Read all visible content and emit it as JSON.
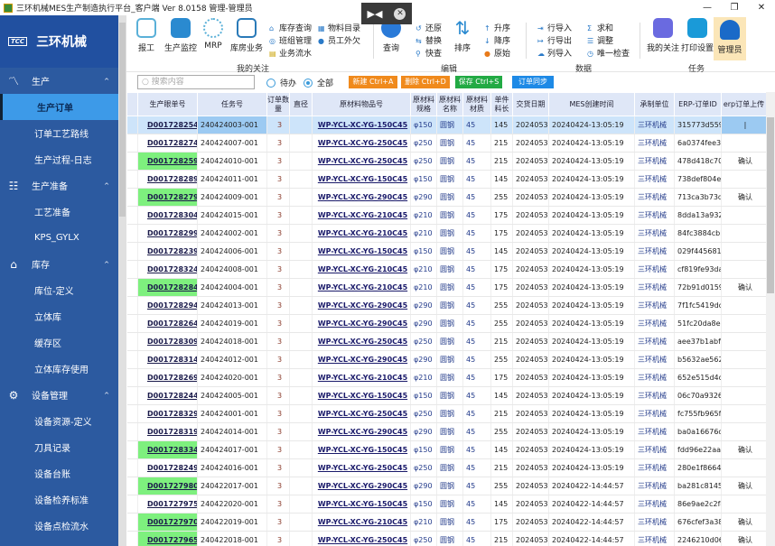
{
  "window": {
    "title": "三环机械MES生产制造执行平台_客户端  Ver 8.0158  管理-管理员",
    "minimize": "—",
    "maximize": "❐",
    "close": "✕"
  },
  "overlay": {
    "icon": "share-arrow-icon",
    "close": "close-icon"
  },
  "sidebar": {
    "logo_mark": "TCC",
    "logo_text": "三环机械",
    "groups": [
      {
        "label": "生产",
        "icon": "chart-line-icon",
        "items": [
          "生产订单",
          "订单工艺路线",
          "生产过程-日志"
        ]
      },
      {
        "label": "生产准备",
        "icon": "checklist-icon",
        "items": [
          "工艺准备",
          "KPS_GYLX"
        ]
      },
      {
        "label": "库存",
        "icon": "home-icon",
        "items": [
          "库位-定义",
          "立体库",
          "缓存区",
          "立体库存使用"
        ]
      },
      {
        "label": "设备管理",
        "icon": "gear-icon",
        "items": [
          "设备资源-定义",
          "刀具记录",
          "设备台账",
          "设备检养标准",
          "设备点检流水"
        ]
      }
    ],
    "active": "生产订单"
  },
  "ribbon": {
    "focus": {
      "label": "我的关注",
      "big": [
        "报工",
        "生产监控",
        "MRP",
        "库房业务"
      ],
      "small": [
        "库存查询",
        "班组管理",
        "业务流水",
        "物料目录",
        "员工外欠"
      ]
    },
    "edit": {
      "label": "编辑",
      "query": "查询",
      "small1": [
        "还原",
        "替换",
        "快查"
      ],
      "sort": "排序",
      "small2": [
        "升序",
        "降序",
        "原始"
      ]
    },
    "data": {
      "label": "数据",
      "small1": [
        "行导入",
        "行导出",
        "列导入"
      ],
      "small2": [
        "求和",
        "调整",
        "唯一检查"
      ]
    },
    "task": {
      "label": "任务",
      "big": [
        "我的关注",
        "打印设置",
        "管理员"
      ]
    }
  },
  "toolbar": {
    "search_placeholder": "搜索内容",
    "radio_pending": "待办",
    "radio_all": "全部",
    "radio_selected": "全部",
    "new": "新建 Ctrl+A",
    "delete": "删除 Ctrl+D",
    "save": "保存 Ctrl+S",
    "sync": "订单同步",
    "colors": {
      "new": "#f08a1c",
      "delete": "#f08a1c",
      "save": "#22aa44",
      "sync": "#1e8ae6"
    }
  },
  "table": {
    "headers": [
      "生产眼单号",
      "任务号",
      "订单数量",
      "直径",
      "原材料物品号",
      "原材料规格",
      "原材料名称",
      "原材料材质",
      "单件料长",
      "交货日期",
      "MES创建时间",
      "承制单位",
      "ERP-订单ID",
      "erp订单上传"
    ],
    "rows": [
      [
        "D001728254",
        "240424003-001",
        "3",
        "",
        "WP-YCL-XC-YG-150C45",
        "φ150",
        "圆钢",
        "45",
        "145",
        "20240531",
        "20240424-13:05:19",
        "三环机械",
        "315773d559",
        "|",
        false
      ],
      [
        "D001728274",
        "240424007-001",
        "3",
        "",
        "WP-YCL-XC-YG-250C45",
        "φ250",
        "圆钢",
        "45",
        "215",
        "20240531",
        "20240424-13:05:19",
        "三环机械",
        "6a0374fee3c",
        "",
        false
      ],
      [
        "D001728259",
        "240424010-001",
        "3",
        "",
        "WP-YCL-XC-YG-250C45",
        "φ250",
        "圆钢",
        "45",
        "215",
        "20240531",
        "20240424-13:05:19",
        "三环机械",
        "478d418c70",
        "确认",
        true
      ],
      [
        "D001728289",
        "240424011-001",
        "3",
        "",
        "WP-YCL-XC-YG-150C45",
        "φ150",
        "圆钢",
        "45",
        "145",
        "20240531",
        "20240424-13:05:19",
        "三环机械",
        "738def804e",
        "",
        false
      ],
      [
        "D001728279",
        "240424009-001",
        "3",
        "",
        "WP-YCL-XC-YG-290C45",
        "φ290",
        "圆钢",
        "45",
        "255",
        "20240531",
        "20240424-13:05:19",
        "三环机械",
        "713ca3b73d",
        "确认",
        true
      ],
      [
        "D001728304",
        "240424015-001",
        "3",
        "",
        "WP-YCL-XC-YG-210C45",
        "φ210",
        "圆钢",
        "45",
        "175",
        "20240531",
        "20240424-13:05:19",
        "三环机械",
        "8dda13a932",
        "",
        false
      ],
      [
        "D001728299",
        "240424002-001",
        "3",
        "",
        "WP-YCL-XC-YG-210C45",
        "φ210",
        "圆钢",
        "45",
        "175",
        "20240531",
        "20240424-13:05:19",
        "三环机械",
        "84fc3884cbb",
        "",
        false
      ],
      [
        "D001728239",
        "240424006-001",
        "3",
        "",
        "WP-YCL-XC-YG-150C45",
        "φ150",
        "圆钢",
        "45",
        "145",
        "20240531",
        "20240424-13:05:19",
        "三环机械",
        "029f4456816",
        "",
        false
      ],
      [
        "D001728324",
        "240424008-001",
        "3",
        "",
        "WP-YCL-XC-YG-210C45",
        "φ210",
        "圆钢",
        "45",
        "175",
        "20240531",
        "20240424-13:05:19",
        "三环机械",
        "cf819fe93da",
        "",
        false
      ],
      [
        "D001728284",
        "240424004-001",
        "3",
        "",
        "WP-YCL-XC-YG-210C45",
        "φ210",
        "圆钢",
        "45",
        "175",
        "20240531",
        "20240424-13:05:19",
        "三环机械",
        "72b91d0159",
        "确认",
        true
      ],
      [
        "D001728294",
        "240424013-001",
        "3",
        "",
        "WP-YCL-XC-YG-290C45",
        "φ290",
        "圆钢",
        "45",
        "255",
        "20240531",
        "20240424-13:05:19",
        "三环机械",
        "7f1fc5419dc",
        "",
        false
      ],
      [
        "D001728264",
        "240424019-001",
        "3",
        "",
        "WP-YCL-XC-YG-290C45",
        "φ290",
        "圆钢",
        "45",
        "255",
        "20240531",
        "20240424-13:05:19",
        "三环机械",
        "51fc20da8e2",
        "",
        false
      ],
      [
        "D001728309",
        "240424018-001",
        "3",
        "",
        "WP-YCL-XC-YG-250C45",
        "φ250",
        "圆钢",
        "45",
        "215",
        "20240531",
        "20240424-13:05:19",
        "三环机械",
        "aee37b1abf",
        "",
        false
      ],
      [
        "D001728314",
        "240424012-001",
        "3",
        "",
        "WP-YCL-XC-YG-290C45",
        "φ290",
        "圆钢",
        "45",
        "255",
        "20240531",
        "20240424-13:05:19",
        "三环机械",
        "b5632ae562",
        "",
        false
      ],
      [
        "D001728269",
        "240424020-001",
        "3",
        "",
        "WP-YCL-XC-YG-210C45",
        "φ210",
        "圆钢",
        "45",
        "175",
        "20240531",
        "20240424-13:05:19",
        "三环机械",
        "652e515d4d",
        "",
        false
      ],
      [
        "D001728244",
        "240424005-001",
        "3",
        "",
        "WP-YCL-XC-YG-150C45",
        "φ150",
        "圆钢",
        "45",
        "145",
        "20240531",
        "20240424-13:05:19",
        "三环机械",
        "06c70a9326",
        "",
        false
      ],
      [
        "D001728329",
        "240424001-001",
        "3",
        "",
        "WP-YCL-XC-YG-250C45",
        "φ250",
        "圆钢",
        "45",
        "215",
        "20240531",
        "20240424-13:05:19",
        "三环机械",
        "fc755fb965f",
        "",
        false
      ],
      [
        "D001728319",
        "240424014-001",
        "3",
        "",
        "WP-YCL-XC-YG-290C45",
        "φ290",
        "圆钢",
        "45",
        "255",
        "20240531",
        "20240424-13:05:19",
        "三环机械",
        "ba0a16676d",
        "",
        false
      ],
      [
        "D001728334",
        "240424017-001",
        "3",
        "",
        "WP-YCL-XC-YG-150C45",
        "φ150",
        "圆钢",
        "45",
        "145",
        "20240531",
        "20240424-13:05:19",
        "三环机械",
        "fdd96e22aa",
        "确认",
        true
      ],
      [
        "D001728249",
        "240424016-001",
        "3",
        "",
        "WP-YCL-XC-YG-250C45",
        "φ250",
        "圆钢",
        "45",
        "215",
        "20240531",
        "20240424-13:05:19",
        "三环机械",
        "280e1f86642",
        "",
        false
      ],
      [
        "D001727980",
        "240422017-001",
        "3",
        "",
        "WP-YCL-XC-YG-290C45",
        "φ290",
        "圆钢",
        "45",
        "255",
        "20240531",
        "20240422-14:44:57",
        "三环机械",
        "ba281c8145",
        "确认",
        true
      ],
      [
        "D001727975",
        "240422020-001",
        "3",
        "",
        "WP-YCL-XC-YG-150C45",
        "φ150",
        "圆钢",
        "45",
        "145",
        "20240531",
        "20240422-14:44:57",
        "三环机械",
        "86e9ae2c2f4",
        "",
        false
      ],
      [
        "D001727970",
        "240422019-001",
        "3",
        "",
        "WP-YCL-XC-YG-210C45",
        "φ210",
        "圆钢",
        "45",
        "175",
        "20240531",
        "20240422-14:44:57",
        "三环机械",
        "676cfef3a38",
        "确认",
        true
      ],
      [
        "D001727965",
        "240422018-001",
        "3",
        "",
        "WP-YCL-XC-YG-250C45",
        "φ250",
        "圆钢",
        "45",
        "215",
        "20240531",
        "20240422-14:44:57",
        "三环机械",
        "2246210d06",
        "确认",
        true
      ]
    ],
    "selected_row": 0,
    "highlight_color": "#7ef07e"
  }
}
